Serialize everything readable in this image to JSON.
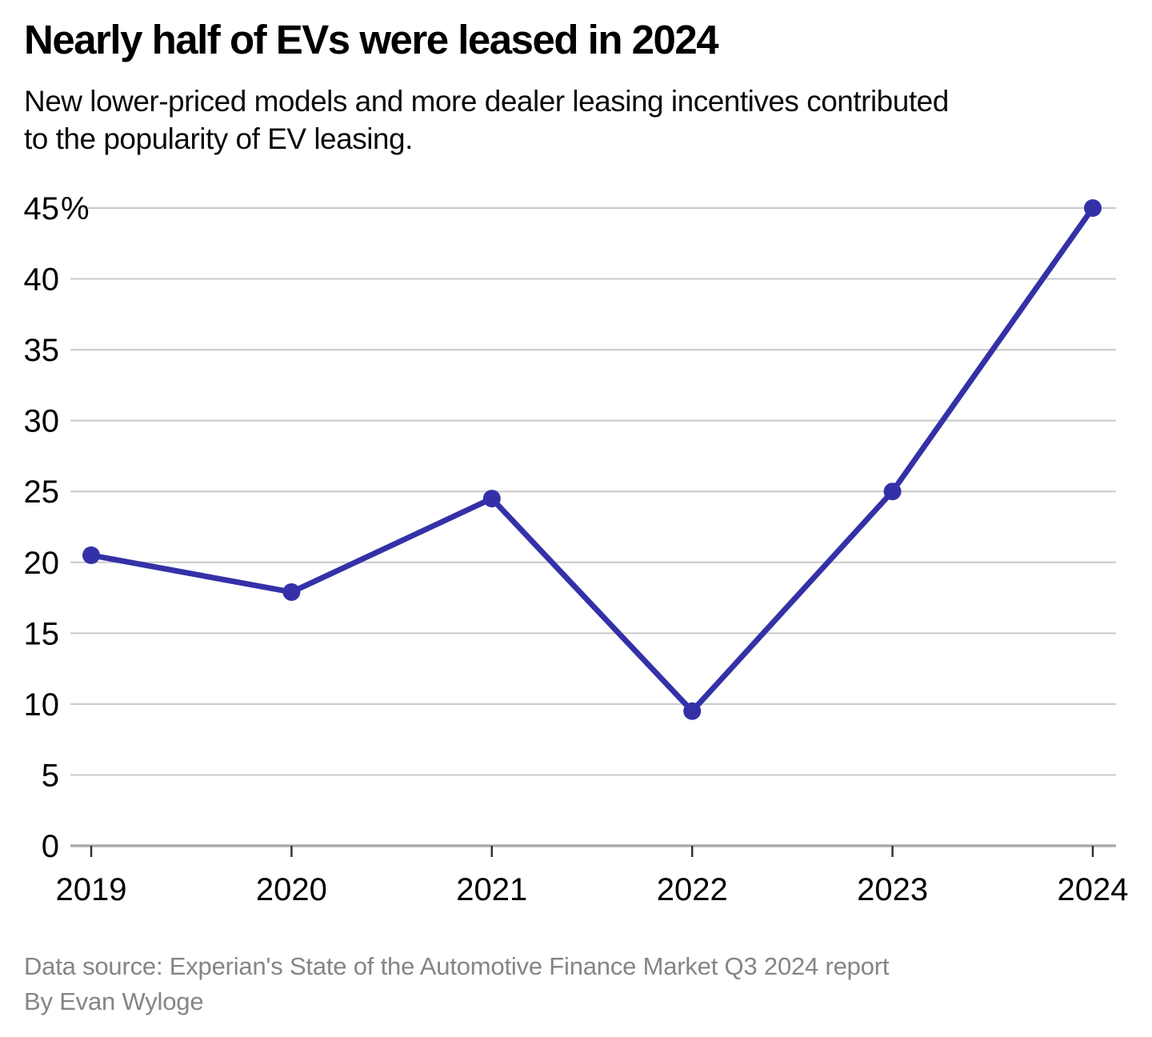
{
  "header": {
    "title": "Nearly half of EVs were leased in 2024",
    "subtitle": "New lower-priced models and more dealer leasing incentives contributed to the popularity of EV leasing."
  },
  "footer": {
    "source": "Data source: Experian's State of the Automotive Finance Market Q3 2024 report",
    "byline": "By Evan Wyloge"
  },
  "chart_data": {
    "type": "line",
    "title": "Nearly half of EVs were leased in 2024",
    "x": [
      "2019",
      "2020",
      "2021",
      "2022",
      "2023",
      "2024"
    ],
    "series": [
      {
        "name": "EVs leased",
        "values": [
          20.5,
          17.9,
          24.5,
          9.5,
          25,
          45
        ]
      }
    ],
    "xlabel": "",
    "ylabel": "",
    "ylim": [
      0,
      45
    ],
    "y_tick_step": 5,
    "y_tick_labels": [
      "0",
      "5",
      "10",
      "15",
      "20",
      "25",
      "30",
      "35",
      "40",
      "45%"
    ],
    "grid": true,
    "legend": false,
    "line_color": "#3431a8"
  }
}
